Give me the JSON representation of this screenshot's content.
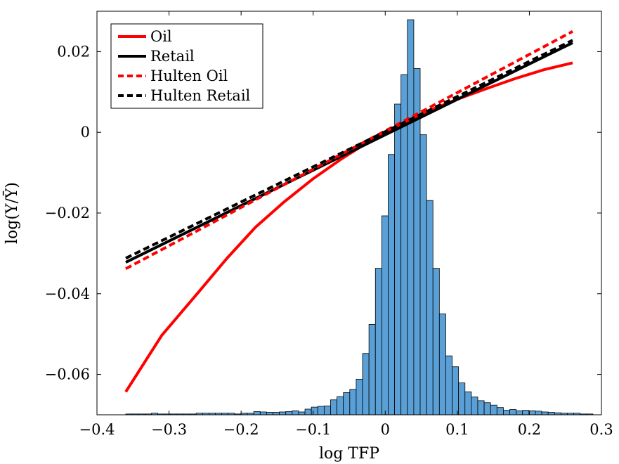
{
  "chart_data": {
    "type": "line",
    "xlabel": "log TFP",
    "ylabel": "log(Y/Ȳ)",
    "xlim": [
      -0.4,
      0.3
    ],
    "ylim": [
      -0.07,
      0.03
    ],
    "xticks": [
      -0.4,
      -0.3,
      -0.2,
      -0.1,
      0,
      0.1,
      0.2,
      0.3
    ],
    "xtick_labels": [
      "−0.4",
      "−0.3",
      "−0.2",
      "−0.1",
      "0",
      "0.1",
      "0.2",
      "0.3"
    ],
    "yticks": [
      0.02,
      0,
      -0.02,
      -0.04,
      -0.06
    ],
    "ytick_labels": [
      "0.02",
      "0",
      "−0.02",
      "−0.04",
      "−0.06"
    ],
    "grid": false,
    "legend_position": "top-left",
    "series": [
      {
        "name": "Oil",
        "style": "solid",
        "color": "#ff0000",
        "x": [
          -0.36,
          -0.31,
          -0.26,
          -0.22,
          -0.18,
          -0.14,
          -0.1,
          -0.06,
          -0.02,
          0.0,
          0.02,
          0.06,
          0.1,
          0.14,
          0.18,
          0.22,
          0.26
        ],
        "y": [
          -0.0643,
          -0.0503,
          -0.0398,
          -0.0313,
          -0.0235,
          -0.0172,
          -0.0115,
          -0.0065,
          -0.002,
          -0.0005,
          0.0018,
          0.0053,
          0.0082,
          0.0108,
          0.0133,
          0.0155,
          0.0172
        ]
      },
      {
        "name": "Retail",
        "style": "solid",
        "color": "#000000",
        "x": [
          -0.36,
          0.26
        ],
        "y": [
          -0.0322,
          0.0222
        ]
      },
      {
        "name": "Hulten Oil",
        "style": "dashed",
        "color": "#ff0000",
        "x": [
          -0.36,
          0.26
        ],
        "y": [
          -0.0338,
          0.025
        ]
      },
      {
        "name": "Hulten Retail",
        "style": "dashed",
        "color": "#000000",
        "x": [
          -0.36,
          0.26
        ],
        "y": [
          -0.0312,
          0.0228
        ]
      }
    ],
    "histogram": {
      "color": "#5aa0d6",
      "edge_color": "#000000",
      "bin_start": -0.36,
      "bin_width": 0.00888,
      "heights": [
        0.0002,
        0.0002,
        0.0002,
        0.0002,
        0.0004,
        0.0002,
        0.0002,
        0.0002,
        0.0002,
        0.0002,
        0.0002,
        0.0004,
        0.0004,
        0.0004,
        0.0004,
        0.0004,
        0.0004,
        0.0002,
        0.0004,
        0.0004,
        0.0008,
        0.0007,
        0.0006,
        0.0006,
        0.0007,
        0.0008,
        0.001,
        0.0007,
        0.0014,
        0.0019,
        0.0021,
        0.0022,
        0.0037,
        0.0045,
        0.0055,
        0.0063,
        0.0088,
        0.0152,
        0.0224,
        0.0363,
        0.0493,
        0.0645,
        0.077,
        0.0843,
        0.0979,
        0.0858,
        0.0694,
        0.0531,
        0.0363,
        0.025,
        0.0146,
        0.0119,
        0.0079,
        0.0057,
        0.0044,
        0.0035,
        0.003,
        0.0024,
        0.0018,
        0.0011,
        0.0013,
        0.001,
        0.0011,
        0.001,
        0.0009,
        0.0007,
        0.0006,
        0.0005,
        0.0004,
        0.0004,
        0.0004,
        0.0002,
        0.0002
      ]
    },
    "legend": [
      "Oil",
      "Retail",
      "Hulten Oil",
      "Hulten Retail"
    ]
  }
}
